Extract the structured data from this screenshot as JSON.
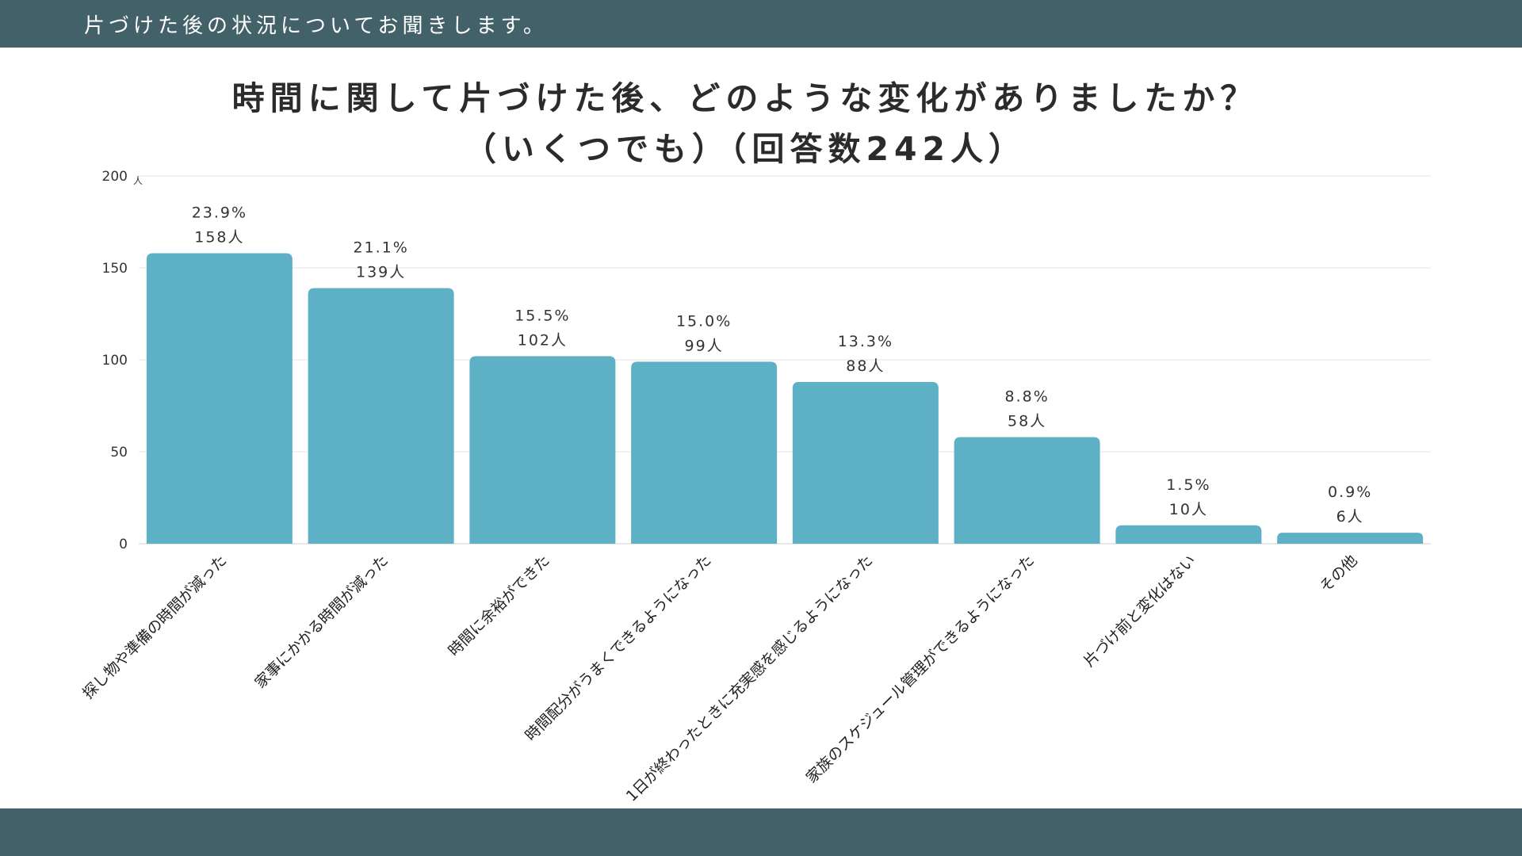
{
  "header": {
    "subtitle": "片づけた後の状況についてお聞きします。"
  },
  "colors": {
    "band": "#436168",
    "bar": "#5eb0c5",
    "grid": "#e6e6e6"
  },
  "chart_data": {
    "type": "bar",
    "title_line1": "時間に関して片づけた後、どのような変化がありましたか？",
    "title_line2": "（いくつでも）（回答数242人）",
    "y_unit": "人",
    "ylim": [
      0,
      200
    ],
    "yticks": [
      0,
      50,
      100,
      150,
      200
    ],
    "grid": true,
    "categories": [
      "探し物や準備の時間が減った",
      "家事にかかる時間が減った",
      "時間に余裕ができた",
      "時間配分がうまくできるようになった",
      "1日が終わったときに充実感を感じるようになった",
      "家族のスケジュール管理ができるようになった",
      "片づけ前と変化はない",
      "その他"
    ],
    "values": [
      158,
      139,
      102,
      99,
      88,
      58,
      10,
      6
    ],
    "percent_labels": [
      "23.9%",
      "21.1%",
      "15.5%",
      "15.0%",
      "13.3%",
      "8.8%",
      "1.5%",
      "0.9%"
    ],
    "count_labels": [
      "158人",
      "139人",
      "102人",
      "99人",
      "88人",
      "58人",
      "10人",
      "6人"
    ]
  }
}
